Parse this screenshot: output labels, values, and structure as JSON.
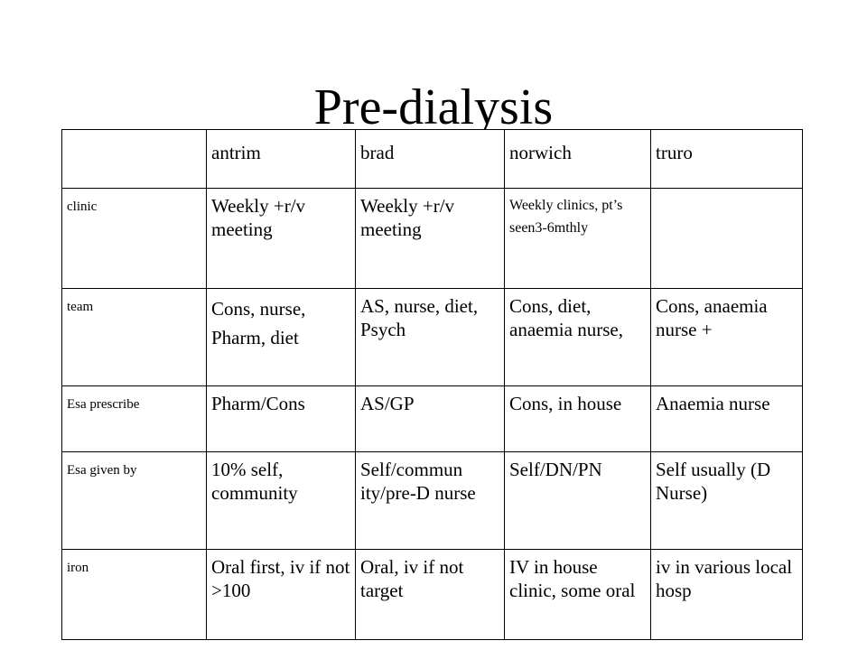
{
  "slide": {
    "title": "Pre-dialysis"
  },
  "table": {
    "headers": [
      "",
      "antrim",
      "brad",
      "norwich",
      "truro"
    ],
    "rows": [
      {
        "label": "clinic",
        "cells": [
          "Weekly +r/v meeting",
          "Weekly +r/v meeting",
          "Weekly clinics, pt’s seen3-6mthly",
          ""
        ]
      },
      {
        "label": "team",
        "cells": [
          "Cons, nurse, Pharm, diet",
          "AS, nurse, diet, Psych",
          "Cons, diet, anaemia nurse,",
          "Cons, anaemia nurse +"
        ]
      },
      {
        "label": "Esa prescribe",
        "cells": [
          "Pharm/Cons",
          "AS/GP",
          "Cons, in house",
          "Anaemia nurse"
        ]
      },
      {
        "label": "Esa given by",
        "cells": [
          "10% self, community",
          "Self/commun ity/pre-D nurse",
          "Self/DN/PN",
          "Self usually (D Nurse)"
        ]
      },
      {
        "label": "iron",
        "cells": [
          "Oral first, iv if not >100",
          "Oral, iv if not target",
          "IV in house clinic, some oral",
          "iv in various local hosp"
        ]
      }
    ]
  }
}
